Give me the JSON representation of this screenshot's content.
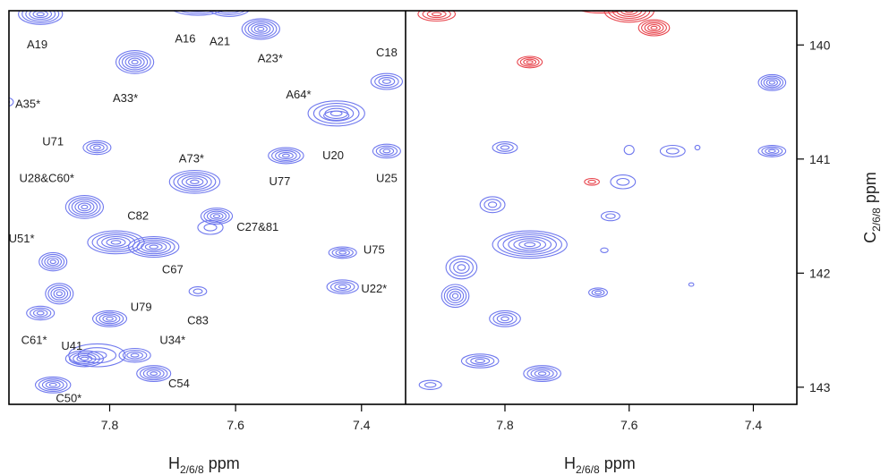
{
  "chart_data": {
    "type": "contour",
    "colors": {
      "blue": "#6f78ee",
      "red": "#e8454d",
      "frame": "#000000",
      "text": "#222222"
    },
    "axes": {
      "x": {
        "label": "H",
        "label_sub": "2/6/8",
        "label_unit": " ppm",
        "range": [
          7.96,
          7.33
        ],
        "ticks": [
          7.8,
          7.6,
          7.4
        ],
        "tick_labels": [
          "7.8",
          "7.6",
          "7.4"
        ]
      },
      "y": {
        "label": "C",
        "label_sub": "2/6/8",
        "label_unit": " ppm",
        "range": [
          139.7,
          143.15
        ],
        "ticks": [
          140,
          141,
          142,
          143
        ],
        "tick_labels": [
          "140",
          "141",
          "142",
          "143"
        ]
      }
    },
    "panels": [
      {
        "name": "left",
        "peaks": [
          {
            "label": "A19",
            "x": 7.91,
            "y": 139.73,
            "rx": 0.035,
            "ry": 0.09,
            "levels": 6,
            "color": "blue"
          },
          {
            "label": "A16",
            "x": 7.66,
            "y": 139.63,
            "rx": 0.05,
            "ry": 0.11,
            "levels": 7,
            "color": "blue"
          },
          {
            "label": "A21",
            "x": 7.61,
            "y": 139.66,
            "rx": 0.035,
            "ry": 0.09,
            "levels": 6,
            "color": "blue"
          },
          {
            "label": "A23*",
            "x": 7.56,
            "y": 139.86,
            "rx": 0.03,
            "ry": 0.09,
            "levels": 6,
            "color": "blue"
          },
          {
            "label": "A33*",
            "x": 7.76,
            "y": 140.15,
            "rx": 0.03,
            "ry": 0.1,
            "levels": 6,
            "color": "blue"
          },
          {
            "label": "A35*",
            "x": 7.965,
            "y": 140.5,
            "rx": 0.012,
            "ry": 0.04,
            "levels": 2,
            "color": "blue"
          },
          {
            "label": "C18",
            "x": 7.36,
            "y": 140.32,
            "rx": 0.025,
            "ry": 0.07,
            "levels": 4,
            "color": "blue"
          },
          {
            "label": "A64*",
            "x": 7.44,
            "y": 140.6,
            "rx": 0.045,
            "ry": 0.11,
            "levels": 5,
            "color": "blue"
          },
          {
            "label": "U20",
            "x": 7.44,
            "y": 140.62,
            "rx": 0.02,
            "ry": 0.04,
            "levels": 1,
            "color": "blue"
          },
          {
            "label": "U71",
            "x": 7.82,
            "y": 140.9,
            "rx": 0.022,
            "ry": 0.06,
            "levels": 4,
            "color": "blue"
          },
          {
            "label": "U77",
            "x": 7.52,
            "y": 140.97,
            "rx": 0.028,
            "ry": 0.07,
            "levels": 5,
            "color": "blue"
          },
          {
            "label": "U25",
            "x": 7.36,
            "y": 140.93,
            "rx": 0.022,
            "ry": 0.06,
            "levels": 4,
            "color": "blue"
          },
          {
            "label": "A73*",
            "x": 7.665,
            "y": 141.2,
            "rx": 0.04,
            "ry": 0.1,
            "levels": 6,
            "color": "blue"
          },
          {
            "label": "U28&C60*",
            "x": 7.84,
            "y": 141.42,
            "rx": 0.03,
            "ry": 0.1,
            "levels": 6,
            "color": "blue"
          },
          {
            "label": "C27&81",
            "x": 7.63,
            "y": 141.5,
            "rx": 0.025,
            "ry": 0.07,
            "levels": 5,
            "color": "blue"
          },
          {
            "label": "C82",
            "x": 7.79,
            "y": 141.73,
            "rx": 0.045,
            "ry": 0.1,
            "levels": 6,
            "color": "blue"
          },
          {
            "label": "C67",
            "x": 7.73,
            "y": 141.77,
            "rx": 0.04,
            "ry": 0.09,
            "levels": 6,
            "color": "blue"
          },
          {
            "label": "U75",
            "x": 7.43,
            "y": 141.82,
            "rx": 0.022,
            "ry": 0.05,
            "levels": 4,
            "color": "blue"
          },
          {
            "label": "U51*",
            "x": 7.89,
            "y": 141.9,
            "rx": 0.022,
            "ry": 0.08,
            "levels": 5,
            "color": "blue"
          },
          {
            "label": "U22*",
            "x": 7.43,
            "y": 142.12,
            "rx": 0.025,
            "ry": 0.06,
            "levels": 4,
            "color": "blue"
          },
          {
            "label": "C83",
            "x": 7.66,
            "y": 142.16,
            "rx": 0.014,
            "ry": 0.04,
            "levels": 2,
            "color": "blue"
          },
          {
            "label": "U79",
            "x": 7.8,
            "y": 142.4,
            "rx": 0.027,
            "ry": 0.07,
            "levels": 5,
            "color": "blue"
          },
          {
            "label": "C61*",
            "x": 7.91,
            "y": 142.35,
            "rx": 0.022,
            "ry": 0.06,
            "levels": 4,
            "color": "blue"
          },
          {
            "label": "U41",
            "x": 7.84,
            "y": 142.75,
            "rx": 0.03,
            "ry": 0.07,
            "levels": 5,
            "color": "blue"
          },
          {
            "label": "U34*",
            "x": 7.76,
            "y": 142.72,
            "rx": 0.025,
            "ry": 0.06,
            "levels": 4,
            "color": "blue"
          },
          {
            "label": "C54",
            "x": 7.73,
            "y": 142.88,
            "rx": 0.027,
            "ry": 0.07,
            "levels": 5,
            "color": "blue"
          },
          {
            "label": "C50*",
            "x": 7.89,
            "y": 142.98,
            "rx": 0.028,
            "ry": 0.07,
            "levels": 5,
            "color": "blue"
          },
          {
            "label": "",
            "x": 7.88,
            "y": 142.18,
            "rx": 0.022,
            "ry": 0.09,
            "levels": 5,
            "color": "blue"
          },
          {
            "label": "",
            "x": 7.64,
            "y": 141.6,
            "rx": 0.02,
            "ry": 0.06,
            "levels": 2,
            "color": "blue"
          },
          {
            "label": "",
            "x": 7.82,
            "y": 142.72,
            "rx": 0.045,
            "ry": 0.1,
            "levels": 3,
            "color": "blue"
          }
        ],
        "labels": [
          {
            "text": "A19",
            "x": 7.915,
            "y": 140.03
          },
          {
            "text": "A16",
            "x": 7.68,
            "y": 139.98
          },
          {
            "text": "A21",
            "x": 7.625,
            "y": 140.0
          },
          {
            "text": "A23*",
            "x": 7.545,
            "y": 140.15
          },
          {
            "text": "A33*",
            "x": 7.775,
            "y": 140.5
          },
          {
            "text": "A35*",
            "x": 7.93,
            "y": 140.55
          },
          {
            "text": "C18",
            "x": 7.36,
            "y": 140.1
          },
          {
            "text": "A64*",
            "x": 7.5,
            "y": 140.47
          },
          {
            "text": "U20",
            "x": 7.445,
            "y": 141.0
          },
          {
            "text": "U71",
            "x": 7.89,
            "y": 140.88
          },
          {
            "text": "U77",
            "x": 7.53,
            "y": 141.23
          },
          {
            "text": "U25",
            "x": 7.36,
            "y": 141.2
          },
          {
            "text": "A73*",
            "x": 7.67,
            "y": 141.03
          },
          {
            "text": "U28&C60*",
            "x": 7.9,
            "y": 141.2
          },
          {
            "text": "C27&81",
            "x": 7.565,
            "y": 141.63
          },
          {
            "text": "C82",
            "x": 7.755,
            "y": 141.53
          },
          {
            "text": "C67",
            "x": 7.7,
            "y": 142.0
          },
          {
            "text": "U75",
            "x": 7.38,
            "y": 141.83
          },
          {
            "text": "U51*",
            "x": 7.94,
            "y": 141.73
          },
          {
            "text": "U22*",
            "x": 7.38,
            "y": 142.17
          },
          {
            "text": "C83",
            "x": 7.66,
            "y": 142.45
          },
          {
            "text": "U79",
            "x": 7.75,
            "y": 142.33
          },
          {
            "text": "C61*",
            "x": 7.92,
            "y": 142.62
          },
          {
            "text": "U41",
            "x": 7.86,
            "y": 142.67
          },
          {
            "text": "U34*",
            "x": 7.7,
            "y": 142.62
          },
          {
            "text": "C54",
            "x": 7.69,
            "y": 143.0
          },
          {
            "text": "C50*",
            "x": 7.865,
            "y": 143.13
          }
        ]
      },
      {
        "name": "right",
        "peaks": [
          {
            "label": "",
            "x": 7.91,
            "y": 139.73,
            "rx": 0.03,
            "ry": 0.06,
            "levels": 4,
            "color": "red"
          },
          {
            "label": "",
            "x": 7.645,
            "y": 139.63,
            "rx": 0.05,
            "ry": 0.09,
            "levels": 6,
            "color": "red"
          },
          {
            "label": "",
            "x": 7.6,
            "y": 139.7,
            "rx": 0.04,
            "ry": 0.1,
            "levels": 6,
            "color": "red"
          },
          {
            "label": "",
            "x": 7.56,
            "y": 139.85,
            "rx": 0.025,
            "ry": 0.07,
            "levels": 5,
            "color": "red"
          },
          {
            "label": "",
            "x": 7.76,
            "y": 140.15,
            "rx": 0.02,
            "ry": 0.05,
            "levels": 4,
            "color": "red"
          },
          {
            "label": "",
            "x": 7.66,
            "y": 141.2,
            "rx": 0.012,
            "ry": 0.03,
            "levels": 2,
            "color": "red"
          },
          {
            "label": "",
            "x": 7.37,
            "y": 140.33,
            "rx": 0.022,
            "ry": 0.07,
            "levels": 5,
            "color": "blue"
          },
          {
            "label": "",
            "x": 7.37,
            "y": 140.93,
            "rx": 0.022,
            "ry": 0.05,
            "levels": 4,
            "color": "blue"
          },
          {
            "label": "",
            "x": 7.8,
            "y": 140.9,
            "rx": 0.02,
            "ry": 0.05,
            "levels": 3,
            "color": "blue"
          },
          {
            "label": "",
            "x": 7.53,
            "y": 140.93,
            "rx": 0.02,
            "ry": 0.05,
            "levels": 2,
            "color": "blue"
          },
          {
            "label": "",
            "x": 7.6,
            "y": 140.92,
            "rx": 0.008,
            "ry": 0.04,
            "levels": 1,
            "color": "blue"
          },
          {
            "label": "",
            "x": 7.61,
            "y": 141.2,
            "rx": 0.02,
            "ry": 0.06,
            "levels": 2,
            "color": "blue"
          },
          {
            "label": "",
            "x": 7.82,
            "y": 141.4,
            "rx": 0.02,
            "ry": 0.07,
            "levels": 3,
            "color": "blue"
          },
          {
            "label": "",
            "x": 7.63,
            "y": 141.5,
            "rx": 0.015,
            "ry": 0.04,
            "levels": 2,
            "color": "blue"
          },
          {
            "label": "",
            "x": 7.76,
            "y": 141.75,
            "rx": 0.06,
            "ry": 0.12,
            "levels": 7,
            "color": "blue"
          },
          {
            "label": "",
            "x": 7.87,
            "y": 141.95,
            "rx": 0.025,
            "ry": 0.1,
            "levels": 4,
            "color": "blue"
          },
          {
            "label": "",
            "x": 7.88,
            "y": 142.2,
            "rx": 0.022,
            "ry": 0.1,
            "levels": 5,
            "color": "blue"
          },
          {
            "label": "",
            "x": 7.65,
            "y": 142.17,
            "rx": 0.015,
            "ry": 0.04,
            "levels": 3,
            "color": "blue"
          },
          {
            "label": "",
            "x": 7.8,
            "y": 142.4,
            "rx": 0.025,
            "ry": 0.07,
            "levels": 4,
            "color": "blue"
          },
          {
            "label": "",
            "x": 7.84,
            "y": 142.77,
            "rx": 0.03,
            "ry": 0.06,
            "levels": 4,
            "color": "blue"
          },
          {
            "label": "",
            "x": 7.74,
            "y": 142.88,
            "rx": 0.03,
            "ry": 0.07,
            "levels": 5,
            "color": "blue"
          },
          {
            "label": "",
            "x": 7.92,
            "y": 142.98,
            "rx": 0.018,
            "ry": 0.04,
            "levels": 2,
            "color": "blue"
          },
          {
            "label": "",
            "x": 7.64,
            "y": 141.8,
            "rx": 0.006,
            "ry": 0.02,
            "levels": 1,
            "color": "blue"
          },
          {
            "label": "",
            "x": 7.5,
            "y": 142.1,
            "rx": 0.004,
            "ry": 0.015,
            "levels": 1,
            "color": "blue"
          },
          {
            "label": "",
            "x": 7.49,
            "y": 140.9,
            "rx": 0.004,
            "ry": 0.02,
            "levels": 1,
            "color": "blue"
          }
        ],
        "labels": []
      }
    ]
  }
}
